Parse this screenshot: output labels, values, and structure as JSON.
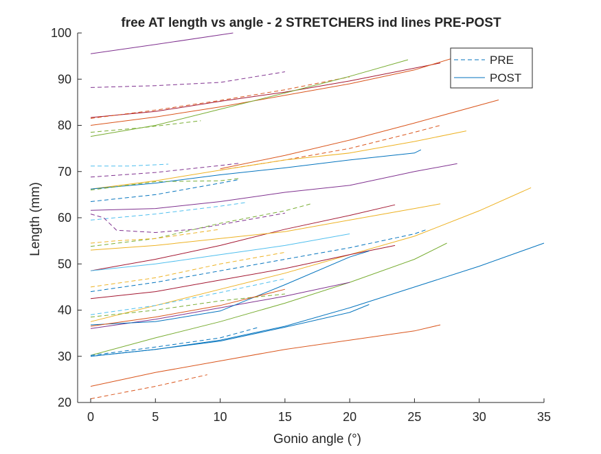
{
  "chart_data": {
    "type": "line",
    "title": "free AT length vs angle - 2 STRETCHERS ind lines PRE-POST",
    "xlabel": "Gonio angle (°)",
    "ylabel": "Length (mm)",
    "xlim": [
      0,
      35
    ],
    "ylim": [
      20,
      100
    ],
    "xticks": [
      "0",
      "5",
      "10",
      "15",
      "20",
      "25",
      "30",
      "35"
    ],
    "yticks": [
      "20",
      "30",
      "40",
      "50",
      "60",
      "70",
      "80",
      "90",
      "100"
    ],
    "legend": {
      "placement": "top-right",
      "entries": [
        {
          "label": "PRE",
          "style": "dashed",
          "color": "#0072BD"
        },
        {
          "label": "POST",
          "style": "solid",
          "color": "#0072BD"
        }
      ]
    },
    "grid": false,
    "series": [
      {
        "color": "#7E2F8E",
        "style": "solid",
        "x": [
          0,
          5,
          11
        ],
        "y": [
          95.5,
          97.5,
          100
        ]
      },
      {
        "color": "#7E2F8E",
        "style": "dashed",
        "x": [
          0,
          5,
          10,
          15
        ],
        "y": [
          88.2,
          88.6,
          89.3,
          91.6
        ]
      },
      {
        "color": "#A2142F",
        "style": "solid",
        "x": [
          0,
          5,
          10,
          15,
          20,
          27
        ],
        "y": [
          81.7,
          83,
          85.2,
          87.2,
          89.6,
          93.5
        ]
      },
      {
        "color": "#D95319",
        "style": "dashed",
        "x": [
          0,
          5,
          10,
          15,
          20
        ],
        "y": [
          81.5,
          83.3,
          85.4,
          87.7,
          90.5
        ]
      },
      {
        "color": "#D95319",
        "style": "solid",
        "x": [
          0,
          5,
          10,
          15,
          20,
          25,
          28.5
        ],
        "y": [
          80,
          81.8,
          84,
          86.5,
          89,
          92,
          95
        ]
      },
      {
        "color": "#77AC30",
        "style": "solid",
        "x": [
          0,
          5,
          10,
          15,
          20,
          24.5
        ],
        "y": [
          77.6,
          80,
          83.5,
          87,
          90.6,
          94.2
        ]
      },
      {
        "color": "#77AC30",
        "style": "dashed",
        "x": [
          0,
          4,
          8.5
        ],
        "y": [
          78.5,
          79.5,
          81
        ]
      },
      {
        "color": "#D95319",
        "style": "solid",
        "x": [
          10,
          15,
          20,
          25,
          31.5
        ],
        "y": [
          70.6,
          73.5,
          76.8,
          80.5,
          85.5
        ]
      },
      {
        "color": "#D95319",
        "style": "dashed",
        "x": [
          10,
          15,
          20,
          25,
          27
        ],
        "y": [
          70.3,
          72.5,
          75,
          78.5,
          80
        ]
      },
      {
        "color": "#EDB120",
        "style": "solid",
        "x": [
          0,
          5,
          10,
          15,
          20,
          25,
          29
        ],
        "y": [
          66.2,
          68,
          70.3,
          72.5,
          74,
          76.5,
          78.8
        ]
      },
      {
        "color": "#0072BD",
        "style": "solid",
        "x": [
          0,
          5,
          10,
          15,
          20,
          25,
          25.5
        ],
        "y": [
          66.2,
          67.5,
          69.3,
          70.8,
          72.5,
          74,
          74.7
        ]
      },
      {
        "color": "#4DBEEE",
        "style": "dashed",
        "x": [
          0,
          3,
          6
        ],
        "y": [
          71.2,
          71.2,
          71.6
        ]
      },
      {
        "color": "#7E2F8E",
        "style": "dashed",
        "x": [
          0,
          5,
          10,
          11.5
        ],
        "y": [
          68.8,
          69.8,
          71.3,
          71.8
        ]
      },
      {
        "color": "#77AC30",
        "style": "dashed",
        "x": [
          0,
          5,
          10,
          11.5
        ],
        "y": [
          66,
          67.8,
          68,
          68.5
        ]
      },
      {
        "color": "#0072BD",
        "style": "dashed",
        "x": [
          0,
          5,
          10,
          11.5
        ],
        "y": [
          63.5,
          65,
          67.5,
          68.3
        ]
      },
      {
        "color": "#7E2F8E",
        "style": "solid",
        "x": [
          0,
          5,
          10,
          15,
          20,
          25,
          28.3
        ],
        "y": [
          61.6,
          62,
          63.5,
          65.5,
          67,
          70,
          71.7
        ]
      },
      {
        "color": "#4DBEEE",
        "style": "dashed",
        "x": [
          0,
          5,
          10,
          12
        ],
        "y": [
          59.5,
          60.8,
          62.5,
          63.3
        ]
      },
      {
        "color": "#7E2F8E",
        "style": "dashed",
        "x": [
          0,
          1,
          2,
          5,
          8,
          10,
          15
        ],
        "y": [
          60.8,
          60,
          57.3,
          56.8,
          57.5,
          58.5,
          61
        ]
      },
      {
        "color": "#77AC30",
        "style": "dashed",
        "x": [
          0,
          5,
          10,
          15,
          17
        ],
        "y": [
          53.8,
          55.5,
          58.8,
          61.5,
          63
        ]
      },
      {
        "color": "#A2142F",
        "style": "solid",
        "x": [
          0,
          5,
          10,
          15,
          20,
          23.5
        ],
        "y": [
          48.5,
          51,
          54,
          57.5,
          60.5,
          62.8
        ]
      },
      {
        "color": "#EDB120",
        "style": "solid",
        "x": [
          0,
          5,
          10,
          15,
          20,
          25,
          27
        ],
        "y": [
          53,
          54,
          55.5,
          57,
          59.5,
          62,
          63
        ]
      },
      {
        "color": "#EDB120",
        "style": "solid",
        "x": [
          0,
          5,
          10,
          15,
          20,
          25,
          30,
          34
        ],
        "y": [
          37.5,
          41,
          44.5,
          48,
          52,
          56,
          61.5,
          66.5
        ]
      },
      {
        "color": "#EDB120",
        "style": "dashed",
        "x": [
          0,
          2,
          5,
          10
        ],
        "y": [
          54.5,
          55,
          55.5,
          57.5
        ]
      },
      {
        "color": "#4DBEEE",
        "style": "solid",
        "x": [
          0,
          5,
          10,
          15,
          20
        ],
        "y": [
          48.5,
          50,
          52,
          54,
          56.5
        ]
      },
      {
        "color": "#0072BD",
        "style": "dashed",
        "x": [
          0,
          5,
          10,
          15,
          20,
          25,
          26
        ],
        "y": [
          44,
          46,
          48.5,
          51,
          53.5,
          56.5,
          57.5
        ]
      },
      {
        "color": "#77AC30",
        "style": "solid",
        "x": [
          0,
          5,
          10,
          15,
          20,
          25,
          27.5
        ],
        "y": [
          30.2,
          34,
          37.5,
          41.5,
          46,
          51,
          54.5
        ]
      },
      {
        "color": "#0072BD",
        "style": "solid",
        "x": [
          0,
          5,
          10,
          15,
          20,
          25,
          30,
          35
        ],
        "y": [
          30,
          31.5,
          33.5,
          36.5,
          40.5,
          45,
          49.5,
          54.5
        ]
      },
      {
        "color": "#A2142F",
        "style": "solid",
        "x": [
          0,
          5,
          10,
          15,
          20,
          23.5
        ],
        "y": [
          42.5,
          44,
          46.5,
          49,
          52,
          54
        ]
      },
      {
        "color": "#EDB120",
        "style": "dashed",
        "x": [
          0,
          5,
          10,
          15
        ],
        "y": [
          45,
          47,
          50,
          52.5
        ]
      },
      {
        "color": "#7E2F8E",
        "style": "solid",
        "x": [
          0,
          5,
          10,
          15,
          20
        ],
        "y": [
          36,
          38,
          40.5,
          43,
          46
        ]
      },
      {
        "color": "#0072BD",
        "style": "solid",
        "x": [
          0,
          5,
          10,
          15,
          20,
          21.5
        ],
        "y": [
          36.8,
          37.5,
          39.8,
          45.5,
          51.5,
          52.8
        ]
      },
      {
        "color": "#77AC30",
        "style": "dashed",
        "x": [
          0,
          5,
          10,
          15
        ],
        "y": [
          38.5,
          40,
          42,
          43.5
        ]
      },
      {
        "color": "#4DBEEE",
        "style": "dashed",
        "x": [
          0,
          5,
          10,
          15
        ],
        "y": [
          39,
          41,
          43.8,
          46.8
        ]
      },
      {
        "color": "#D95319",
        "style": "solid",
        "x": [
          0,
          5,
          10,
          15
        ],
        "y": [
          36.5,
          38.5,
          41,
          44.5
        ]
      },
      {
        "color": "#0072BD",
        "style": "dashed",
        "x": [
          0,
          5,
          10,
          13
        ],
        "y": [
          30.2,
          32,
          34,
          36.3
        ]
      },
      {
        "color": "#0072BD",
        "style": "solid",
        "x": [
          0,
          5,
          10,
          15,
          20,
          21.5
        ],
        "y": [
          30,
          31.5,
          33.3,
          36.3,
          39.5,
          41.2
        ]
      },
      {
        "color": "#D95319",
        "style": "solid",
        "x": [
          0,
          5,
          10,
          15,
          20,
          25,
          27
        ],
        "y": [
          23.5,
          26.5,
          29,
          31.5,
          33.5,
          35.5,
          36.8
        ]
      },
      {
        "color": "#D95319",
        "style": "dashed",
        "x": [
          0,
          5,
          9
        ],
        "y": [
          20.8,
          23.5,
          26
        ]
      }
    ]
  }
}
